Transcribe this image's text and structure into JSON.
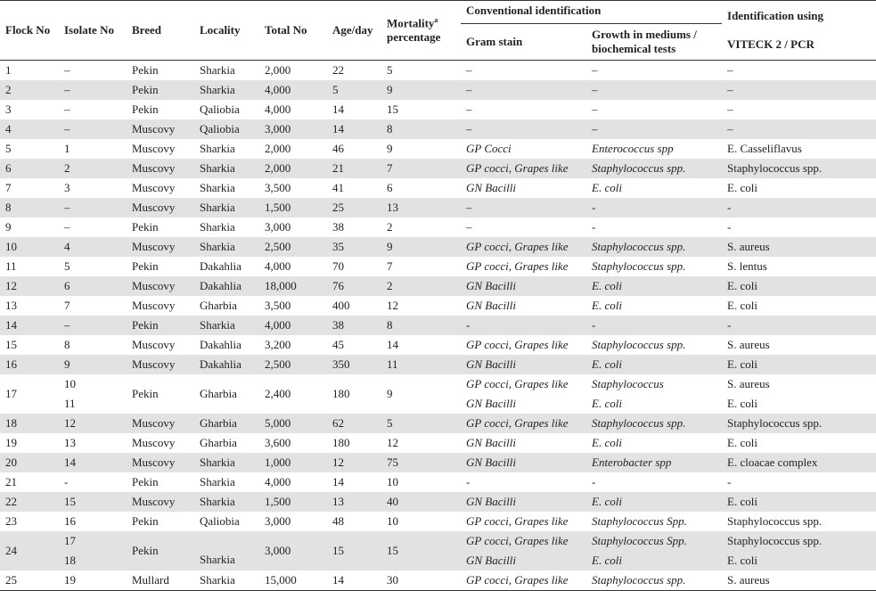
{
  "table": {
    "headers": [
      "Flock No",
      "Isolate No",
      "Breed",
      "Locality",
      "Total No",
      "Age/day"
    ],
    "mortality_header": {
      "text": "Mortality",
      "sup": "a",
      "line2": "percentage"
    },
    "group_header": "Conventional identification",
    "subheaders": [
      "Gram stain",
      {
        "line1": "Growth in mediums /",
        "line2": "biochemical tests"
      }
    ],
    "id_header": {
      "line1": "Identification using",
      "line2": "VITECK 2 / PCR"
    },
    "italic_columns": [
      8,
      9
    ],
    "rows": [
      {
        "cells": [
          "1",
          "–",
          "Pekin",
          "Sharkia",
          "2,000",
          "22",
          "5",
          "–",
          "–",
          "–"
        ]
      },
      {
        "cells": [
          "2",
          "–",
          "Pekin",
          "Sharkia",
          "4,000",
          "5",
          "9",
          "–",
          "–",
          "–"
        ]
      },
      {
        "cells": [
          "3",
          "–",
          "Pekin",
          "Qaliobia",
          "4,000",
          "14",
          "15",
          "–",
          "–",
          "–"
        ]
      },
      {
        "cells": [
          "4",
          "–",
          "Muscovy",
          "Qaliobia",
          "3,000",
          "14",
          "8",
          "–",
          "–",
          "–"
        ]
      },
      {
        "cells": [
          "5",
          "1",
          "Muscovy",
          "Sharkia",
          "2,000",
          "46",
          "9",
          "GP Cocci",
          "Enterococcus spp",
          "E. Casseliflavus"
        ]
      },
      {
        "cells": [
          "6",
          "2",
          "Muscovy",
          "Sharkia",
          "2,000",
          "21",
          "7",
          "GP cocci, Grapes like",
          "Staphylococcus spp.",
          "Staphylococcus spp."
        ]
      },
      {
        "cells": [
          "7",
          "3",
          "Muscovy",
          "Sharkia",
          "3,500",
          "41",
          "6",
          "GN Bacilli",
          "E. coli",
          "E. coli"
        ]
      },
      {
        "cells": [
          "8",
          "–",
          "Muscovy",
          "Sharkia",
          "1,500",
          "25",
          "13",
          "–",
          "-",
          "-"
        ]
      },
      {
        "cells": [
          "9",
          "–",
          "Pekin",
          "Sharkia",
          "3,000",
          "38",
          "2",
          "–",
          "-",
          "-"
        ]
      },
      {
        "cells": [
          "10",
          "4",
          "Muscovy",
          "Sharkia",
          "2,500",
          "35",
          "9",
          "GP cocci, Grapes like",
          "Staphylococcus spp.",
          "S. aureus"
        ]
      },
      {
        "cells": [
          "11",
          "5",
          "Pekin",
          "Dakahlia",
          "4,000",
          "70",
          "7",
          "GP cocci, Grapes like",
          "Staphylococcus spp.",
          "S. lentus"
        ]
      },
      {
        "cells": [
          "12",
          "6",
          "Muscovy",
          "Dakahlia",
          "18,000",
          "76",
          "2",
          "GN Bacilli",
          "E. coli",
          "E. coli"
        ]
      },
      {
        "cells": [
          "13",
          "7",
          "Muscovy",
          "Gharbia",
          "3,500",
          "400",
          "12",
          "GN Bacilli",
          "E. coli",
          "E. coli"
        ]
      },
      {
        "cells": [
          "14",
          "–",
          "Pekin",
          "Sharkia",
          "4,000",
          "38",
          "8",
          "-",
          "-",
          "-"
        ]
      },
      {
        "cells": [
          "15",
          "8",
          "Muscovy",
          "Dakahlia",
          "3,200",
          "45",
          "14",
          "GP cocci, Grapes like",
          "Staphylococcus spp.",
          "S. aureus"
        ]
      },
      {
        "cells": [
          "16",
          "9",
          "Muscovy",
          "Dakahlia",
          "2,500",
          "350",
          "11",
          "GN Bacilli",
          "E. coli",
          "E. coli"
        ]
      },
      {
        "cells": [
          "17",
          "10",
          "Pekin",
          "Gharbia",
          "2,400",
          "180",
          "9",
          "GP cocci, Grapes like",
          "Staphylococcus",
          "S. aureus"
        ],
        "sub": [
          null,
          "11",
          null,
          null,
          null,
          null,
          null,
          "GN Bacilli",
          "E. coli",
          "E. coli"
        ]
      },
      {
        "cells": [
          "18",
          "12",
          "Muscovy",
          "Gharbia",
          "5,000",
          "62",
          "5",
          "GP cocci, Grapes like",
          "Staphylococcus spp.",
          "Staphylococcus spp."
        ]
      },
      {
        "cells": [
          "19",
          "13",
          "Muscovy",
          "Gharbia",
          "3,600",
          "180",
          "12",
          "GN Bacilli",
          "E. coli",
          "E. coli"
        ]
      },
      {
        "cells": [
          "20",
          "14",
          "Muscovy",
          "Sharkia",
          "1,000",
          "12",
          "75",
          "GN Bacilli",
          "Enterobacter spp",
          "E. cloacae complex"
        ]
      },
      {
        "cells": [
          "21",
          "-",
          "Pekin",
          "Sharkia",
          "4,000",
          "14",
          "10",
          "-",
          "-",
          "-"
        ]
      },
      {
        "cells": [
          "22",
          "15",
          "Muscovy",
          "Sharkia",
          "1,500",
          "13",
          "40",
          "GN Bacilli",
          "E. coli",
          "E. coli"
        ]
      },
      {
        "cells": [
          "23",
          "16",
          "Pekin",
          "Qaliobia",
          "3,000",
          "48",
          "10",
          "GP cocci, Grapes like",
          "Staphylococcus Spp.",
          "Staphylococcus spp."
        ]
      },
      {
        "cells": [
          "24",
          "17",
          "Pekin",
          null,
          "3,000",
          "15",
          "15",
          "GP cocci, Grapes like",
          "Staphylococcus Spp.",
          "Staphylococcus spp."
        ],
        "sub": [
          null,
          "18",
          null,
          "Sharkia",
          null,
          null,
          null,
          "GN Bacilli",
          "E. coli",
          "E. coli"
        ]
      },
      {
        "cells": [
          "25",
          "19",
          "Mullard",
          "Sharkia",
          "15,000",
          "14",
          "30",
          "GP cocci, Grapes like",
          "Staphylococcus spp.",
          "S. aureus"
        ]
      }
    ]
  }
}
